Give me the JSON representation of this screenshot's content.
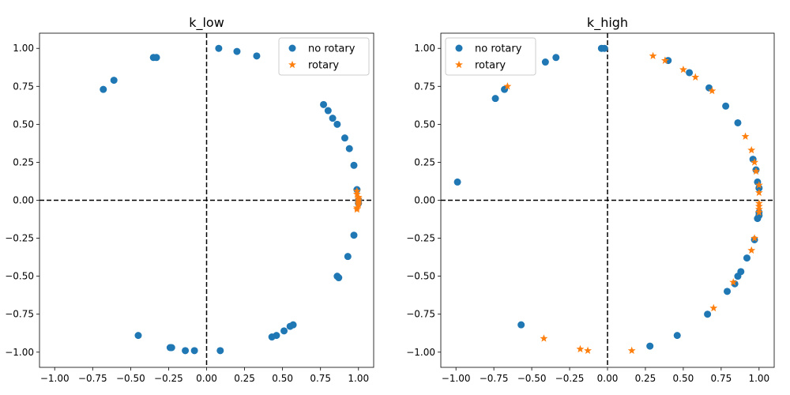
{
  "chart_data": [
    {
      "type": "scatter",
      "title": "k_low",
      "xlabel": "",
      "ylabel": "",
      "xlim": [
        -1.1,
        1.1
      ],
      "ylim": [
        -1.1,
        1.1
      ],
      "xticks": [
        "−1.00",
        "−0.75",
        "−0.50",
        "−0.25",
        "0.00",
        "0.25",
        "0.50",
        "0.75",
        "1.00"
      ],
      "yticks": [
        "1.00",
        "0.75",
        "0.50",
        "0.25",
        "0.00",
        "−0.25",
        "−0.50",
        "−0.75",
        "−1.00"
      ],
      "grid": false,
      "reference_lines": [
        "x=0",
        "y=0"
      ],
      "legend_position": "top-right",
      "series": [
        {
          "name": "no rotary",
          "marker": "circle",
          "color": "#1f77b4",
          "points": [
            [
              0.08,
              1.0
            ],
            [
              0.2,
              0.98
            ],
            [
              0.33,
              0.95
            ],
            [
              -0.35,
              0.94
            ],
            [
              -0.33,
              0.94
            ],
            [
              -0.61,
              0.79
            ],
            [
              -0.68,
              0.73
            ],
            [
              0.77,
              0.63
            ],
            [
              0.8,
              0.59
            ],
            [
              0.83,
              0.54
            ],
            [
              0.86,
              0.5
            ],
            [
              0.91,
              0.41
            ],
            [
              0.94,
              0.34
            ],
            [
              0.97,
              0.23
            ],
            [
              0.99,
              0.07
            ],
            [
              0.97,
              -0.23
            ],
            [
              0.93,
              -0.37
            ],
            [
              0.86,
              -0.5
            ],
            [
              0.87,
              -0.51
            ],
            [
              0.57,
              -0.82
            ],
            [
              0.55,
              -0.83
            ],
            [
              0.51,
              -0.86
            ],
            [
              0.46,
              -0.89
            ],
            [
              0.43,
              -0.9
            ],
            [
              -0.45,
              -0.89
            ],
            [
              -0.24,
              -0.97
            ],
            [
              -0.23,
              -0.97
            ],
            [
              -0.14,
              -0.99
            ],
            [
              -0.08,
              -0.99
            ],
            [
              0.09,
              -0.99
            ],
            [
              1.0,
              0.0
            ],
            [
              1.0,
              -0.02
            ]
          ]
        },
        {
          "name": "rotary",
          "marker": "star",
          "color": "#ff7f0e",
          "points": [
            [
              0.99,
              0.06
            ],
            [
              0.99,
              0.04
            ],
            [
              1.0,
              0.02
            ],
            [
              1.0,
              0.01
            ],
            [
              1.0,
              0.0
            ],
            [
              1.0,
              -0.01
            ],
            [
              1.0,
              -0.02
            ],
            [
              1.0,
              -0.03
            ],
            [
              0.99,
              -0.05
            ],
            [
              0.99,
              -0.06
            ]
          ]
        }
      ]
    },
    {
      "type": "scatter",
      "title": "k_high",
      "xlabel": "",
      "ylabel": "",
      "xlim": [
        -1.1,
        1.1
      ],
      "ylim": [
        -1.1,
        1.1
      ],
      "xticks": [
        "−1.00",
        "−0.75",
        "−0.50",
        "−0.25",
        "0.00",
        "0.25",
        "0.50",
        "0.75",
        "1.00"
      ],
      "yticks": [
        "1.00",
        "0.75",
        "0.50",
        "0.25",
        "0.00",
        "−0.25",
        "−0.50",
        "−0.75",
        "−1.00"
      ],
      "grid": false,
      "reference_lines": [
        "x=0",
        "y=0"
      ],
      "legend_position": "top-left",
      "series": [
        {
          "name": "no rotary",
          "marker": "circle",
          "color": "#1f77b4",
          "points": [
            [
              -0.04,
              1.0
            ],
            [
              -0.02,
              1.0
            ],
            [
              -0.34,
              0.94
            ],
            [
              -0.41,
              0.91
            ],
            [
              -0.68,
              0.73
            ],
            [
              -0.74,
              0.67
            ],
            [
              0.4,
              0.92
            ],
            [
              0.54,
              0.84
            ],
            [
              0.67,
              0.74
            ],
            [
              0.78,
              0.62
            ],
            [
              0.86,
              0.51
            ],
            [
              0.96,
              0.27
            ],
            [
              0.98,
              0.2
            ],
            [
              0.99,
              0.12
            ],
            [
              1.0,
              0.08
            ],
            [
              1.0,
              -0.08
            ],
            [
              1.0,
              -0.1
            ],
            [
              0.99,
              -0.12
            ],
            [
              0.97,
              -0.26
            ],
            [
              0.92,
              -0.38
            ],
            [
              0.88,
              -0.47
            ],
            [
              0.86,
              -0.5
            ],
            [
              0.84,
              -0.55
            ],
            [
              0.79,
              -0.6
            ],
            [
              0.66,
              -0.75
            ],
            [
              0.46,
              -0.89
            ],
            [
              0.28,
              -0.96
            ],
            [
              -0.57,
              -0.82
            ],
            [
              -0.99,
              0.12
            ]
          ]
        },
        {
          "name": "rotary",
          "marker": "star",
          "color": "#ff7f0e",
          "points": [
            [
              -0.66,
              0.75
            ],
            [
              0.3,
              0.95
            ],
            [
              0.38,
              0.92
            ],
            [
              0.5,
              0.86
            ],
            [
              0.58,
              0.81
            ],
            [
              0.69,
              0.72
            ],
            [
              0.91,
              0.42
            ],
            [
              0.95,
              0.33
            ],
            [
              0.97,
              0.25
            ],
            [
              0.98,
              0.19
            ],
            [
              1.0,
              0.1
            ],
            [
              1.0,
              0.05
            ],
            [
              1.0,
              -0.02
            ],
            [
              1.0,
              -0.04
            ],
            [
              1.0,
              -0.06
            ],
            [
              1.0,
              -0.08
            ],
            [
              0.97,
              -0.25
            ],
            [
              0.95,
              -0.33
            ],
            [
              0.83,
              -0.54
            ],
            [
              0.7,
              -0.71
            ],
            [
              -0.42,
              -0.91
            ],
            [
              -0.18,
              -0.98
            ],
            [
              -0.13,
              -0.99
            ],
            [
              0.16,
              -0.99
            ]
          ]
        }
      ]
    }
  ]
}
